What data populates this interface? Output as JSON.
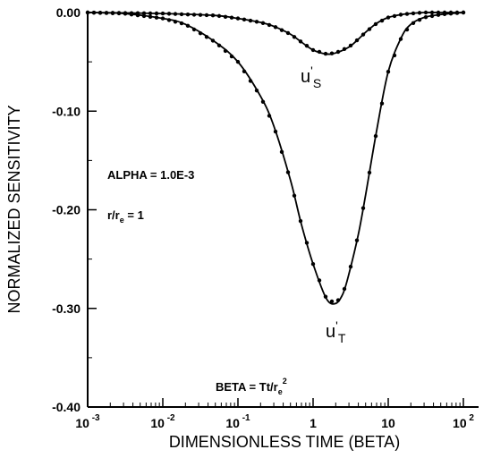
{
  "chart_data": {
    "type": "line",
    "title": "",
    "xlabel": "DIMENSIONLESS TIME (BETA)",
    "ylabel": "NORMALIZED SENSITIVITY",
    "xscale": "log",
    "xlim": [
      0.001,
      100
    ],
    "ylim": [
      -0.4,
      0.0
    ],
    "grid": false,
    "x_ticks": [
      {
        "value": 0.001,
        "base": "10",
        "exp": "-3"
      },
      {
        "value": 0.01,
        "base": "10",
        "exp": "-2"
      },
      {
        "value": 0.1,
        "base": "10",
        "exp": "-1"
      },
      {
        "value": 1,
        "base": "1",
        "exp": ""
      },
      {
        "value": 10,
        "base": "10",
        "exp": ""
      },
      {
        "value": 100,
        "base": "10",
        "exp": "2"
      }
    ],
    "y_ticks": [
      {
        "value": 0.0,
        "label": "0.00"
      },
      {
        "value": -0.1,
        "label": "-0.10"
      },
      {
        "value": -0.2,
        "label": "-0.20"
      },
      {
        "value": -0.3,
        "label": "-0.30"
      },
      {
        "value": -0.4,
        "label": "-0.40"
      }
    ],
    "series": [
      {
        "key": "uT",
        "x": [
          0.001,
          0.003,
          0.01,
          0.02,
          0.05,
          0.1,
          0.2,
          0.3,
          0.5,
          0.7,
          1.0,
          1.5,
          2.0,
          2.5,
          3.0,
          4.0,
          5.0,
          7.0,
          10,
          15,
          20,
          30,
          50,
          100
        ],
        "y": [
          0.0,
          -0.001,
          -0.006,
          -0.012,
          -0.03,
          -0.05,
          -0.085,
          -0.115,
          -0.17,
          -0.215,
          -0.255,
          -0.29,
          -0.295,
          -0.285,
          -0.265,
          -0.225,
          -0.185,
          -0.12,
          -0.06,
          -0.025,
          -0.012,
          -0.005,
          -0.002,
          0.0
        ]
      },
      {
        "key": "uS",
        "x": [
          0.001,
          0.01,
          0.05,
          0.1,
          0.2,
          0.3,
          0.5,
          0.7,
          1.0,
          1.5,
          2.0,
          3.0,
          4.0,
          5.0,
          7.0,
          10,
          15,
          20,
          30,
          50,
          100
        ],
        "y": [
          0.0,
          -0.001,
          -0.003,
          -0.006,
          -0.01,
          -0.014,
          -0.022,
          -0.03,
          -0.038,
          -0.042,
          -0.041,
          -0.035,
          -0.027,
          -0.02,
          -0.011,
          -0.005,
          -0.002,
          -0.001,
          0.0,
          0.0,
          0.0
        ]
      }
    ],
    "curve_labels": {
      "uS": {
        "base": "u",
        "prime": "'",
        "sub": "S"
      },
      "uT": {
        "base": "u",
        "prime": "'",
        "sub": "T"
      }
    },
    "annotations": {
      "alpha": "ALPHA = 1.0E-3",
      "ratio_base": "r/r",
      "ratio_sub": "e",
      "ratio_value": " = 1",
      "beta_prefix": "BETA = Tt/r",
      "beta_sub": "e",
      "beta_sup": "2"
    }
  }
}
